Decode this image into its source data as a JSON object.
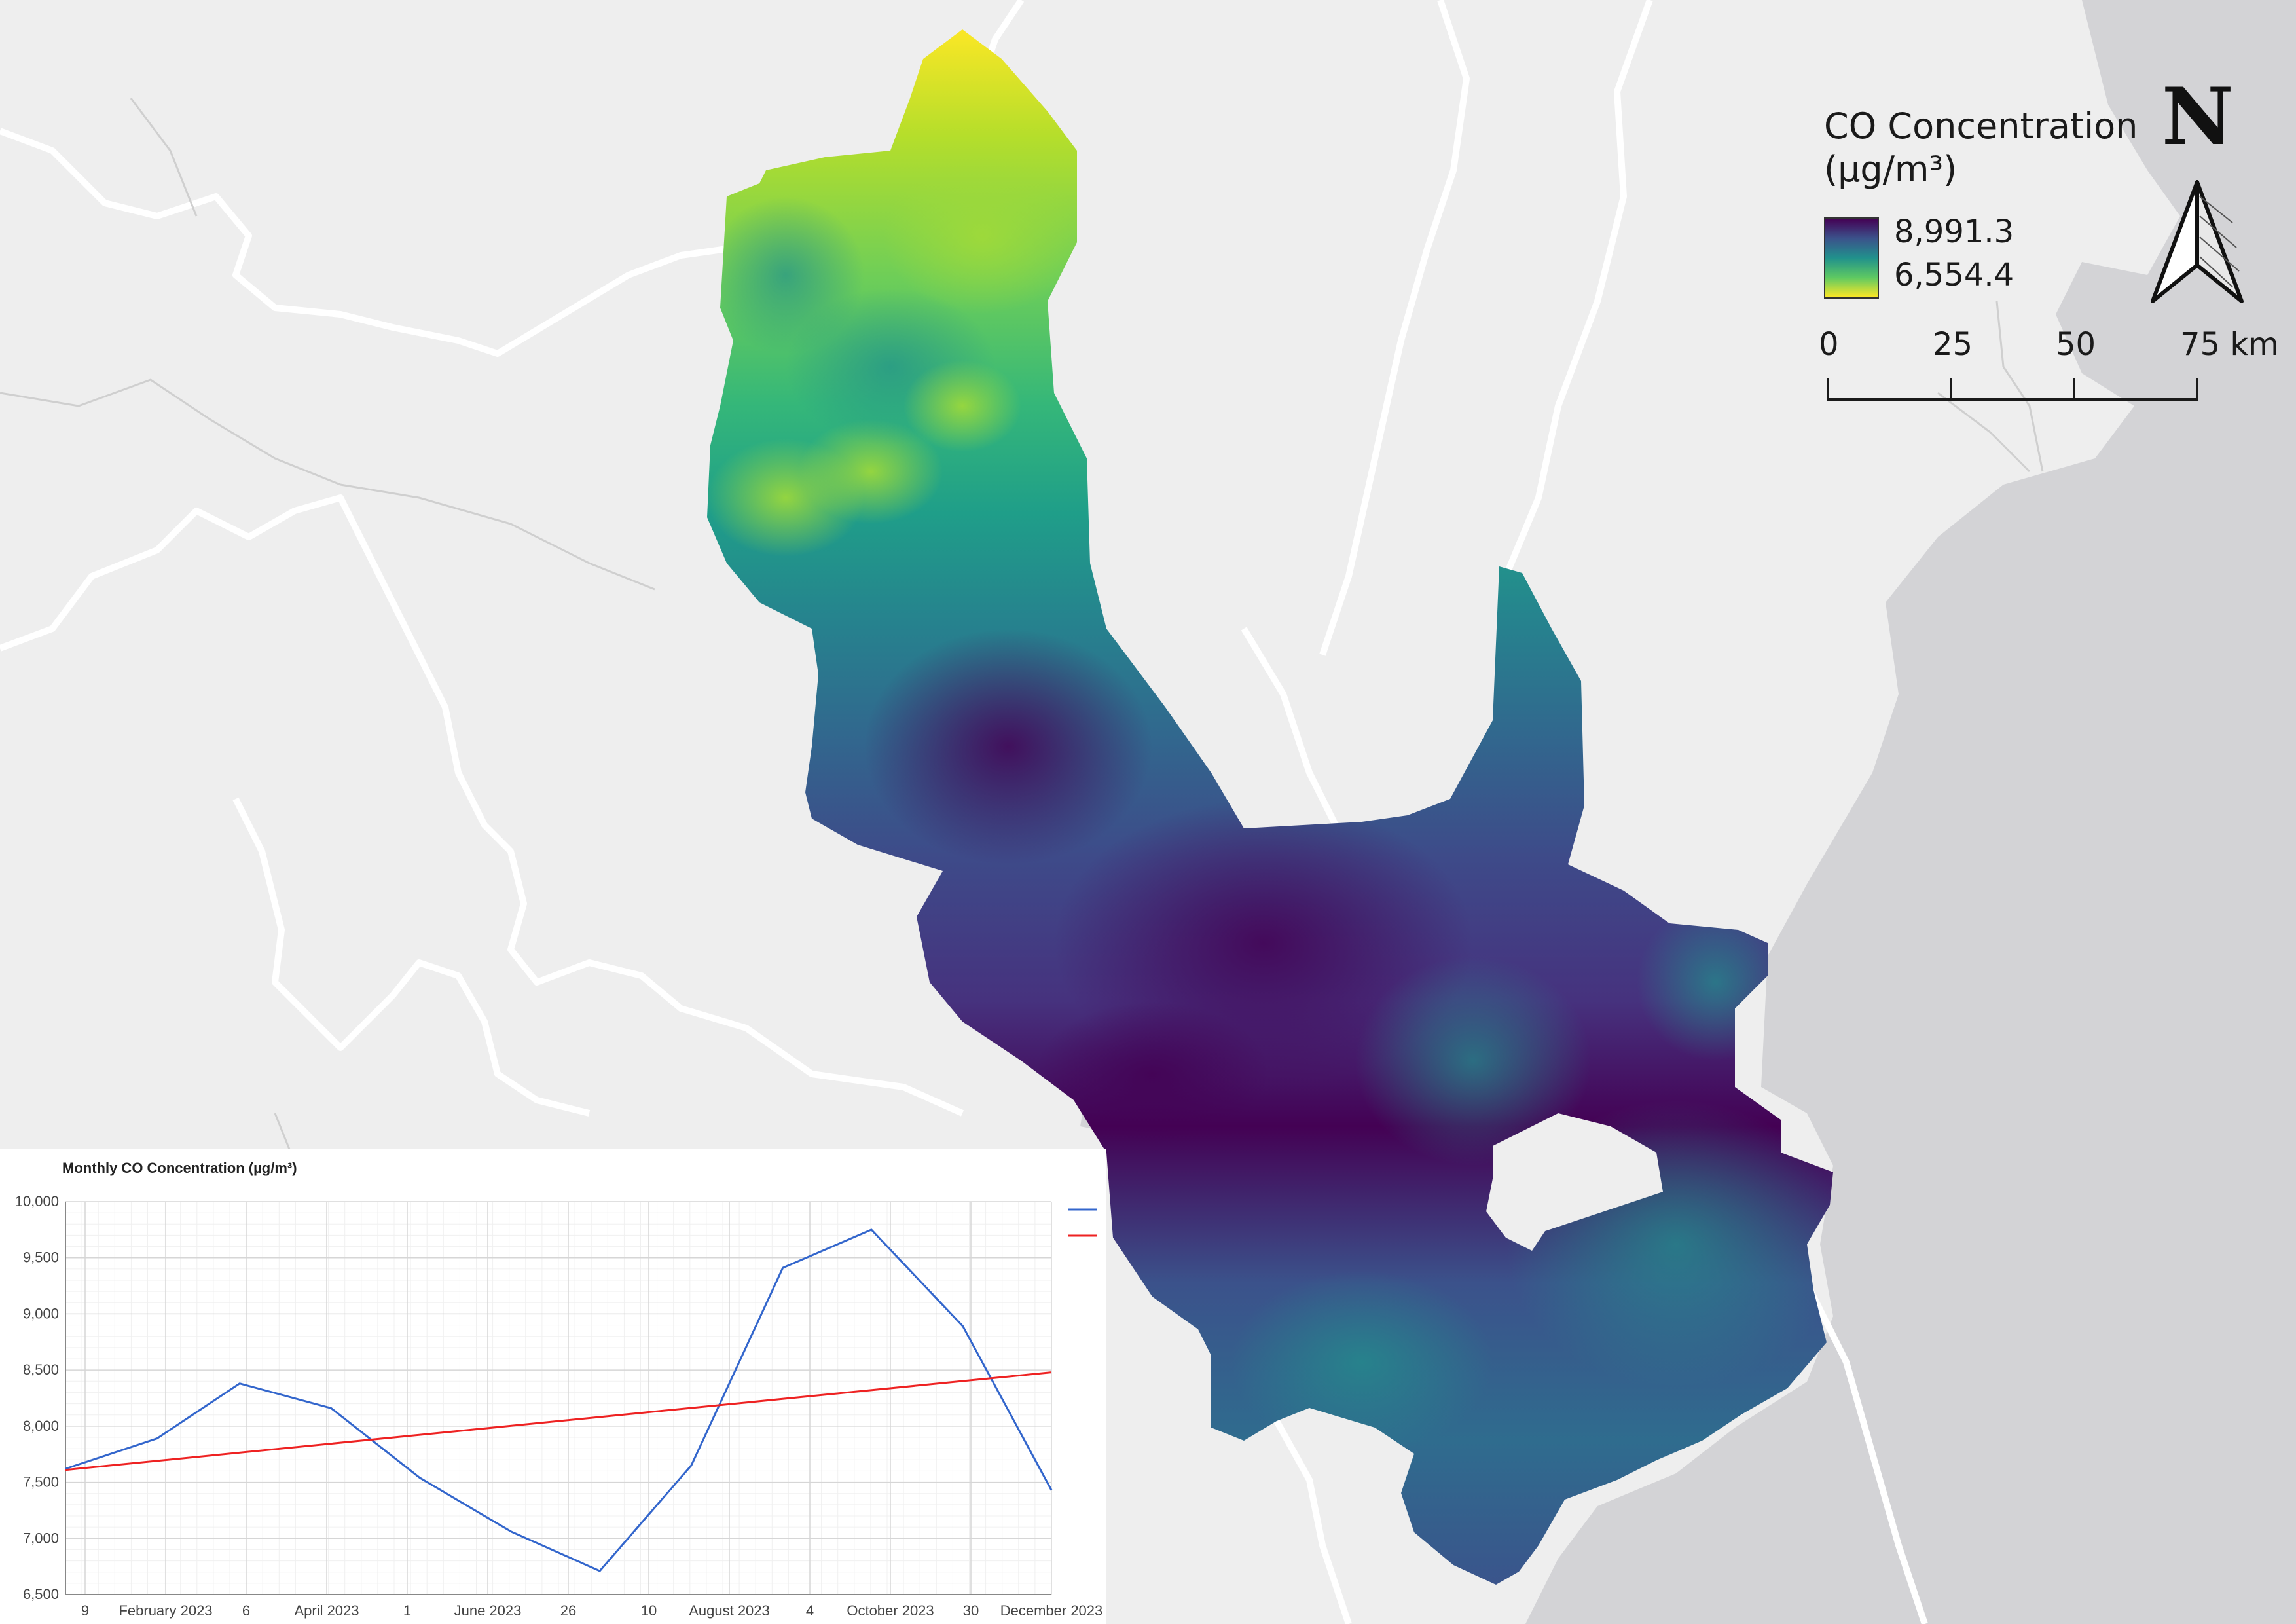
{
  "legend": {
    "title_line1": "CO Concentration",
    "title_line2": "(µg/m³)",
    "max_label": "8,991.3",
    "min_label": "6,554.4",
    "colors": [
      "#440154",
      "#3b528b",
      "#21918c",
      "#5ec962",
      "#fde725"
    ]
  },
  "scale_bar": {
    "labels": [
      "0",
      "25",
      "50",
      "75 km"
    ]
  },
  "north_arrow": {
    "label": "N",
    "icon": "north-arrow-icon"
  },
  "map": {
    "basemap_land_color": "#eeeeee",
    "basemap_sea_color": "#d3d3d6",
    "boundary_color": "#ffffff"
  },
  "chart": {
    "title": "Monthly CO Concentration (µg/m³)"
  },
  "chart_data": {
    "type": "line",
    "title": "Monthly CO Concentration (µg/m³)",
    "xlabel": "",
    "ylabel": "",
    "ylim": [
      6500,
      10000
    ],
    "y_ticks": [
      "6,500",
      "7,000",
      "7,500",
      "8,000",
      "8,500",
      "9,000",
      "9,500",
      "10,000"
    ],
    "x_tick_labels": [
      "9",
      "February 2023",
      "6",
      "April 2023",
      "1",
      "June 2023",
      "26",
      "10",
      "August 2023",
      "4",
      "October 2023",
      "30",
      "December 2023"
    ],
    "grid": true,
    "legend_placement": "right",
    "series": [
      {
        "color": "#3366cc",
        "points": [
          {
            "x": "2023-01-01",
            "y": 7620
          },
          {
            "x": "2023-02-01",
            "y": 7890
          },
          {
            "x": "2023-03-01",
            "y": 8380
          },
          {
            "x": "2023-04-01",
            "y": 8160
          },
          {
            "x": "2023-05-01",
            "y": 7540
          },
          {
            "x": "2023-06-01",
            "y": 7060
          },
          {
            "x": "2023-07-01",
            "y": 6710
          },
          {
            "x": "2023-08-01",
            "y": 7650
          },
          {
            "x": "2023-09-01",
            "y": 9410
          },
          {
            "x": "2023-10-01",
            "y": 9750
          },
          {
            "x": "2023-11-01",
            "y": 8890
          },
          {
            "x": "2023-12-01",
            "y": 7430
          }
        ]
      },
      {
        "color": "#ee2222",
        "points": [
          {
            "x": "2023-01-01",
            "y": 7610
          },
          {
            "x": "2023-12-01",
            "y": 8480
          }
        ]
      }
    ]
  }
}
